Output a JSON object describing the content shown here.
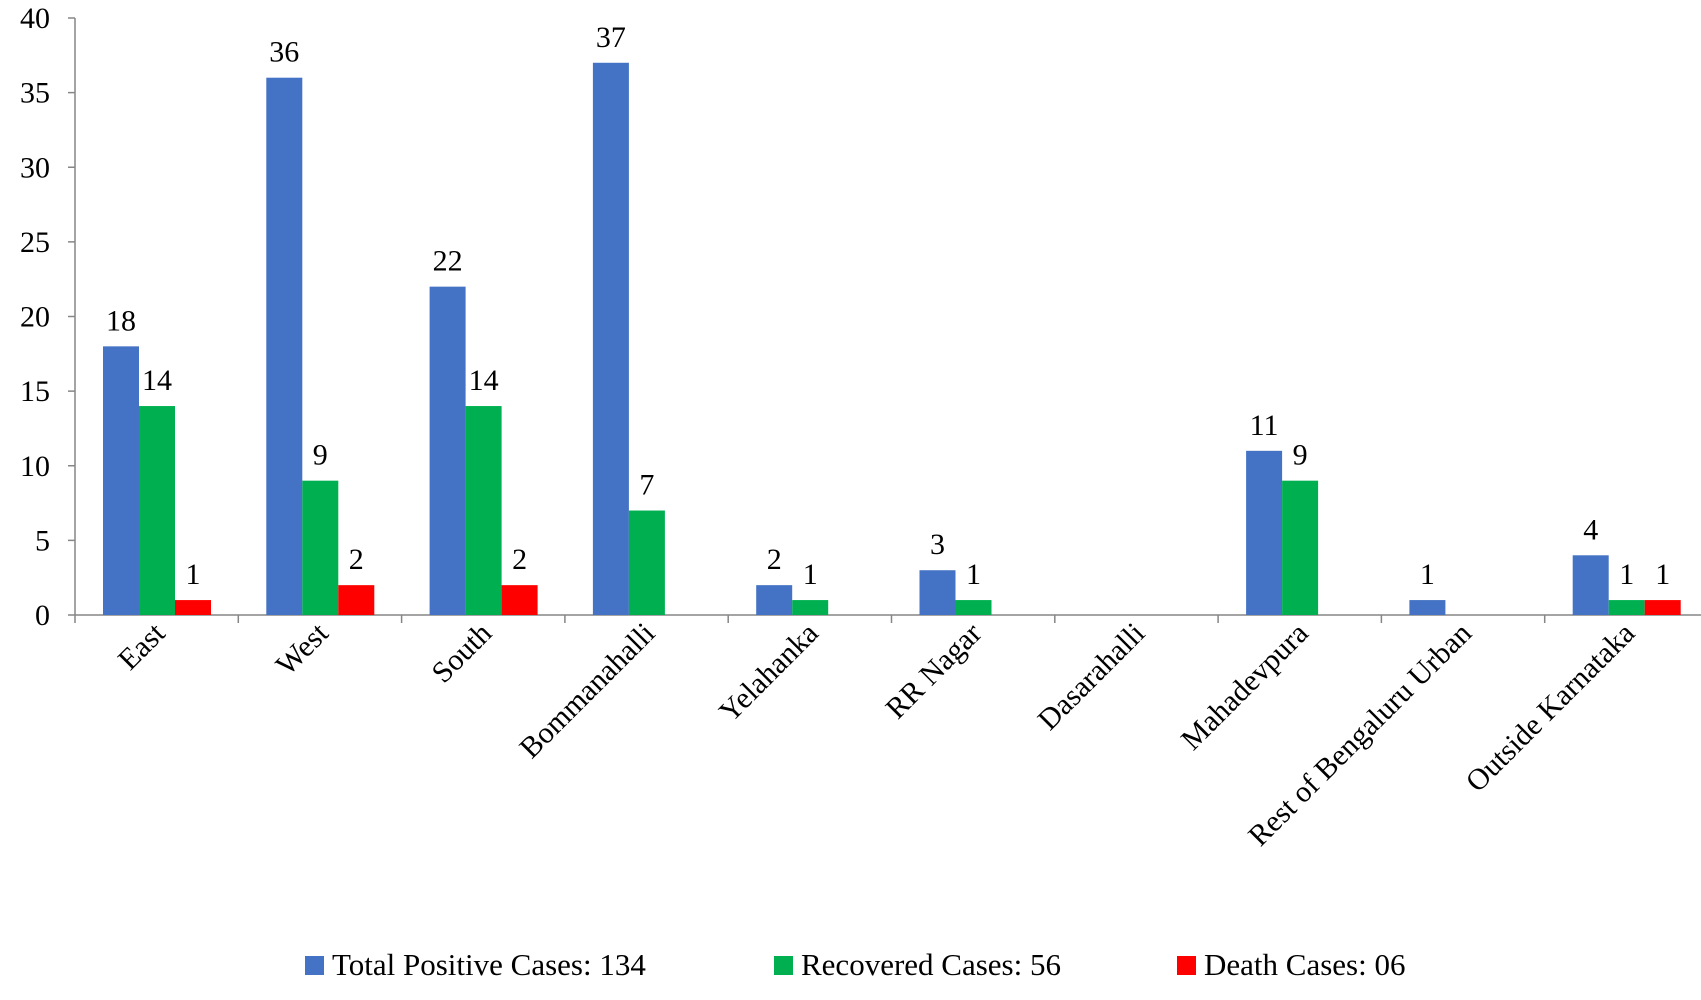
{
  "chart_data": {
    "type": "bar",
    "categories": [
      "East",
      "West",
      "South",
      "Bommanahalli",
      "Yelahanka",
      "RR Nagar",
      "Dasarahalli",
      "Mahadevpura",
      "Rest of Bengaluru Urban",
      "Outside Karnataka"
    ],
    "series": [
      {
        "name": "Total Positive Cases: 134",
        "color": "#4472C4",
        "values": [
          18,
          36,
          22,
          37,
          2,
          3,
          0,
          11,
          1,
          4
        ],
        "labels": [
          "18",
          "36",
          "22",
          "37",
          "2",
          "3",
          "",
          "11",
          "1",
          "4"
        ]
      },
      {
        "name": "Recovered Cases: 56",
        "color": "#00B050",
        "values": [
          14,
          9,
          14,
          7,
          1,
          1,
          0,
          9,
          0,
          1
        ],
        "labels": [
          "14",
          "9",
          "14",
          "7",
          "1",
          "1",
          "",
          "9",
          "",
          "1"
        ]
      },
      {
        "name": "Death Cases: 06",
        "color": "#FF0000",
        "values": [
          1,
          2,
          2,
          0,
          0,
          0,
          0,
          0,
          0,
          1
        ],
        "labels": [
          "1",
          "2",
          "2",
          "",
          "",
          "",
          "",
          "",
          "",
          "1"
        ]
      }
    ],
    "y_ticks": [
      "0",
      "5",
      "10",
      "15",
      "20",
      "25",
      "30",
      "35",
      "40"
    ],
    "ylim": [
      0,
      40
    ],
    "grid": false,
    "legend_position": "bottom"
  }
}
